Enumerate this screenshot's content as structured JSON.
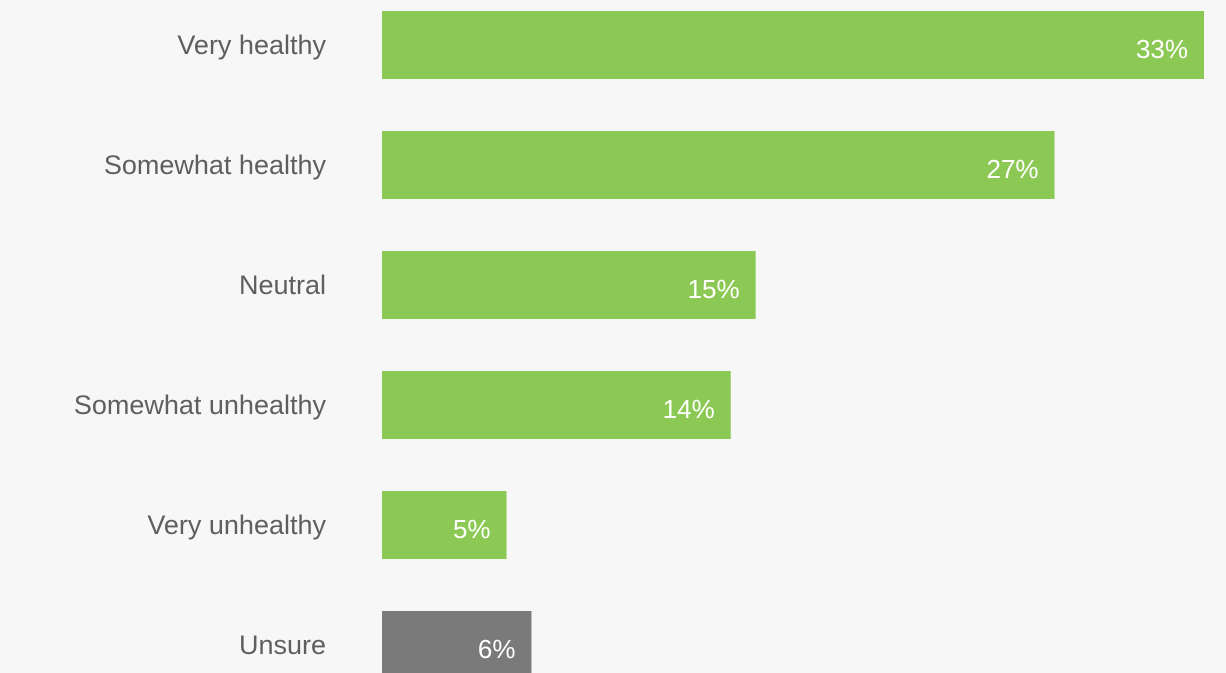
{
  "chart_data": {
    "type": "bar",
    "orientation": "horizontal",
    "title": "",
    "xlabel": "",
    "ylabel": "",
    "grid": false,
    "xlim": [
      0,
      33
    ],
    "categories": [
      "Very healthy",
      "Somewhat healthy",
      "Neutral",
      "Somewhat unhealthy",
      "Very unhealthy",
      "Unsure"
    ],
    "values": [
      33,
      27,
      15,
      14,
      5,
      6
    ],
    "value_labels": [
      "33%",
      "27%",
      "15%",
      "14%",
      "5%",
      "6%"
    ],
    "bar_colors": [
      "#8cc954",
      "#8cc954",
      "#8cc954",
      "#8cc954",
      "#8cc954",
      "#7a7a7a"
    ]
  }
}
